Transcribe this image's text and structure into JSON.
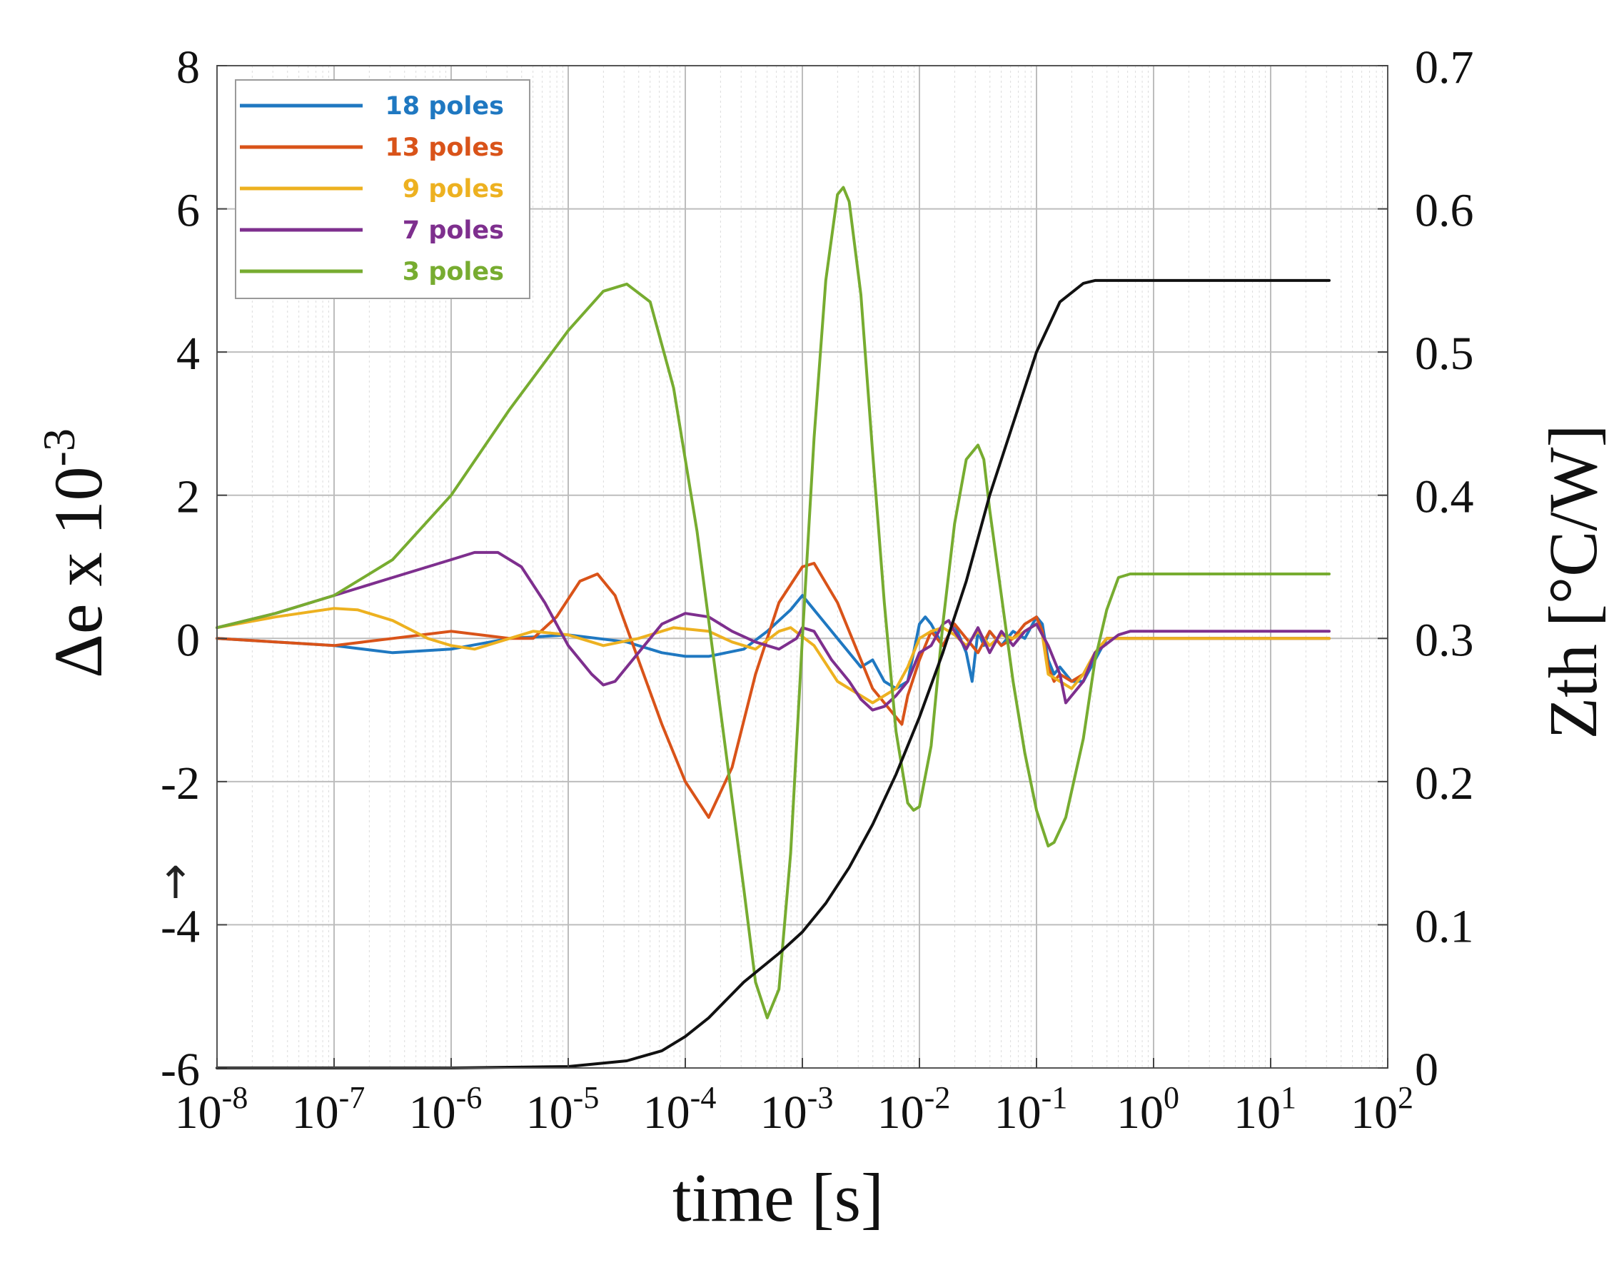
{
  "chart_data": {
    "type": "line",
    "title": "",
    "xlabel": "time [s]",
    "ylabel_left": "Δe x 10",
    "ylabel_left_exponent": "-3",
    "ylabel_right": "Zth [°C/W]",
    "x_scale": "log",
    "xlim": [
      1e-08,
      100
    ],
    "ylim_left": [
      -6,
      8
    ],
    "ylim_right": [
      0,
      0.7
    ],
    "grid": true,
    "legend_position": "top-left",
    "left_arrow_glyph": "↑",
    "x_ticks": [
      {
        "value": 1e-08,
        "base": "10",
        "exp": "-8"
      },
      {
        "value": 1e-07,
        "base": "10",
        "exp": "-7"
      },
      {
        "value": 1e-06,
        "base": "10",
        "exp": "-6"
      },
      {
        "value": 1e-05,
        "base": "10",
        "exp": "-5"
      },
      {
        "value": 0.0001,
        "base": "10",
        "exp": "-4"
      },
      {
        "value": 0.001,
        "base": "10",
        "exp": "-3"
      },
      {
        "value": 0.01,
        "base": "10",
        "exp": "-2"
      },
      {
        "value": 0.1,
        "base": "10",
        "exp": "-1"
      },
      {
        "value": 1,
        "base": "10",
        "exp": "0"
      },
      {
        "value": 10,
        "base": "10",
        "exp": "1"
      },
      {
        "value": 100,
        "base": "10",
        "exp": "2"
      }
    ],
    "y_left_ticks": [
      {
        "value": 8,
        "label": "8"
      },
      {
        "value": 6,
        "label": "6"
      },
      {
        "value": 4,
        "label": "4"
      },
      {
        "value": 2,
        "label": "2"
      },
      {
        "value": 0,
        "label": "0"
      },
      {
        "value": -2,
        "label": "-2"
      },
      {
        "value": -4,
        "label": "-4"
      },
      {
        "value": -6,
        "label": "-6"
      }
    ],
    "y_right_ticks": [
      {
        "value": 0.7,
        "label": "0.7"
      },
      {
        "value": 0.6,
        "label": "0.6"
      },
      {
        "value": 0.5,
        "label": "0.5"
      },
      {
        "value": 0.4,
        "label": "0.4"
      },
      {
        "value": 0.3,
        "label": "0.3"
      },
      {
        "value": 0.2,
        "label": "0.2"
      },
      {
        "value": 0.1,
        "label": "0.1"
      },
      {
        "value": 0,
        "label": "0"
      }
    ],
    "series": [
      {
        "name": "18 poles",
        "label": "18 poles",
        "color": "#1f78c1",
        "axis": "left",
        "points": [
          [
            -8,
            0
          ],
          [
            -7.5,
            -0.05
          ],
          [
            -7,
            -0.1
          ],
          [
            -6.5,
            -0.2
          ],
          [
            -6,
            -0.15
          ],
          [
            -5.5,
            0
          ],
          [
            -5,
            0.05
          ],
          [
            -4.5,
            -0.05
          ],
          [
            -4.2,
            -0.2
          ],
          [
            -4,
            -0.25
          ],
          [
            -3.8,
            -0.25
          ],
          [
            -3.5,
            -0.15
          ],
          [
            -3.3,
            0.1
          ],
          [
            -3.1,
            0.4
          ],
          [
            -3,
            0.6
          ],
          [
            -2.9,
            0.4
          ],
          [
            -2.7,
            0
          ],
          [
            -2.5,
            -0.4
          ],
          [
            -2.4,
            -0.3
          ],
          [
            -2.3,
            -0.6
          ],
          [
            -2.2,
            -0.7
          ],
          [
            -2.1,
            -0.6
          ],
          [
            -2,
            0.2
          ],
          [
            -1.95,
            0.3
          ],
          [
            -1.9,
            0.2
          ],
          [
            -1.8,
            -0.1
          ],
          [
            -1.7,
            0.2
          ],
          [
            -1.6,
            -0.2
          ],
          [
            -1.55,
            -0.6
          ],
          [
            -1.5,
            0.1
          ],
          [
            -1.45,
            -0.1
          ],
          [
            -1.4,
            0.1
          ],
          [
            -1.3,
            -0.1
          ],
          [
            -1.2,
            0.1
          ],
          [
            -1.1,
            0
          ],
          [
            -1,
            0.3
          ],
          [
            -0.95,
            0.2
          ],
          [
            -0.9,
            -0.3
          ],
          [
            -0.85,
            -0.5
          ],
          [
            -0.8,
            -0.4
          ],
          [
            -0.7,
            -0.6
          ],
          [
            -0.6,
            -0.6
          ],
          [
            -0.5,
            -0.3
          ],
          [
            -0.4,
            0
          ],
          [
            1.5,
            0
          ]
        ]
      },
      {
        "name": "13 poles",
        "label": "13 poles",
        "color": "#d95319",
        "axis": "left",
        "points": [
          [
            -8,
            0
          ],
          [
            -7.5,
            -0.05
          ],
          [
            -7,
            -0.1
          ],
          [
            -6.5,
            0
          ],
          [
            -6,
            0.1
          ],
          [
            -5.5,
            0
          ],
          [
            -5.3,
            0
          ],
          [
            -5.1,
            0.3
          ],
          [
            -4.9,
            0.8
          ],
          [
            -4.75,
            0.9
          ],
          [
            -4.6,
            0.6
          ],
          [
            -4.4,
            -0.3
          ],
          [
            -4.2,
            -1.2
          ],
          [
            -4,
            -2
          ],
          [
            -3.8,
            -2.5
          ],
          [
            -3.6,
            -1.8
          ],
          [
            -3.4,
            -0.5
          ],
          [
            -3.2,
            0.5
          ],
          [
            -3,
            1
          ],
          [
            -2.9,
            1.05
          ],
          [
            -2.7,
            0.5
          ],
          [
            -2.5,
            -0.3
          ],
          [
            -2.4,
            -0.7
          ],
          [
            -2.3,
            -0.9
          ],
          [
            -2.2,
            -1.1
          ],
          [
            -2.15,
            -1.2
          ],
          [
            -2.1,
            -0.8
          ],
          [
            -2,
            -0.3
          ],
          [
            -1.9,
            0.1
          ],
          [
            -1.8,
            -0.1
          ],
          [
            -1.7,
            0.2
          ],
          [
            -1.6,
            0
          ],
          [
            -1.5,
            -0.2
          ],
          [
            -1.4,
            0.1
          ],
          [
            -1.3,
            -0.1
          ],
          [
            -1.2,
            0
          ],
          [
            -1.1,
            0.2
          ],
          [
            -1,
            0.3
          ],
          [
            -0.95,
            0.1
          ],
          [
            -0.9,
            -0.4
          ],
          [
            -0.85,
            -0.6
          ],
          [
            -0.8,
            -0.5
          ],
          [
            -0.7,
            -0.6
          ],
          [
            -0.6,
            -0.5
          ],
          [
            -0.5,
            -0.2
          ],
          [
            -0.4,
            0
          ],
          [
            1.5,
            0
          ]
        ]
      },
      {
        "name": "9 poles",
        "label": "9 poles",
        "color": "#edb120",
        "axis": "left",
        "points": [
          [
            -8,
            0.15
          ],
          [
            -7.5,
            0.3
          ],
          [
            -7,
            0.42
          ],
          [
            -6.8,
            0.4
          ],
          [
            -6.5,
            0.25
          ],
          [
            -6.2,
            0
          ],
          [
            -6,
            -0.1
          ],
          [
            -5.8,
            -0.15
          ],
          [
            -5.6,
            -0.05
          ],
          [
            -5.3,
            0.1
          ],
          [
            -5,
            0.05
          ],
          [
            -4.7,
            -0.1
          ],
          [
            -4.4,
            0
          ],
          [
            -4.1,
            0.15
          ],
          [
            -3.8,
            0.1
          ],
          [
            -3.6,
            -0.05
          ],
          [
            -3.4,
            -0.15
          ],
          [
            -3.2,
            0.1
          ],
          [
            -3.1,
            0.15
          ],
          [
            -2.9,
            -0.1
          ],
          [
            -2.7,
            -0.6
          ],
          [
            -2.5,
            -0.8
          ],
          [
            -2.4,
            -0.9
          ],
          [
            -2.3,
            -0.8
          ],
          [
            -2.2,
            -0.7
          ],
          [
            -2.1,
            -0.4
          ],
          [
            -2,
            0
          ],
          [
            -1.9,
            0.1
          ],
          [
            -1.8,
            0.15
          ],
          [
            -1.7,
            0.05
          ],
          [
            -1.6,
            -0.1
          ],
          [
            -1.5,
            0.1
          ],
          [
            -1.4,
            -0.1
          ],
          [
            -1.3,
            0.05
          ],
          [
            -1.2,
            0
          ],
          [
            -1.1,
            0.1
          ],
          [
            -1,
            0.2
          ],
          [
            -0.95,
            0.05
          ],
          [
            -0.9,
            -0.5
          ],
          [
            -0.8,
            -0.6
          ],
          [
            -0.7,
            -0.7
          ],
          [
            -0.6,
            -0.5
          ],
          [
            -0.5,
            -0.2
          ],
          [
            -0.4,
            0
          ],
          [
            1.5,
            0
          ]
        ]
      },
      {
        "name": "7 poles",
        "label": "7 poles",
        "color": "#7e2f8e",
        "axis": "left",
        "points": [
          [
            -8,
            0.15
          ],
          [
            -7.5,
            0.35
          ],
          [
            -7,
            0.6
          ],
          [
            -6.5,
            0.85
          ],
          [
            -6,
            1.1
          ],
          [
            -5.8,
            1.2
          ],
          [
            -5.6,
            1.2
          ],
          [
            -5.4,
            1
          ],
          [
            -5.2,
            0.5
          ],
          [
            -5,
            -0.1
          ],
          [
            -4.8,
            -0.5
          ],
          [
            -4.7,
            -0.65
          ],
          [
            -4.6,
            -0.6
          ],
          [
            -4.4,
            -0.2
          ],
          [
            -4.2,
            0.2
          ],
          [
            -4,
            0.35
          ],
          [
            -3.8,
            0.3
          ],
          [
            -3.6,
            0.1
          ],
          [
            -3.4,
            -0.05
          ],
          [
            -3.2,
            -0.15
          ],
          [
            -3.05,
            0
          ],
          [
            -3,
            0.15
          ],
          [
            -2.9,
            0.1
          ],
          [
            -2.75,
            -0.3
          ],
          [
            -2.6,
            -0.6
          ],
          [
            -2.5,
            -0.85
          ],
          [
            -2.4,
            -1
          ],
          [
            -2.3,
            -0.95
          ],
          [
            -2.2,
            -0.8
          ],
          [
            -2.1,
            -0.6
          ],
          [
            -2,
            -0.2
          ],
          [
            -1.9,
            -0.1
          ],
          [
            -1.8,
            0.2
          ],
          [
            -1.75,
            0.25
          ],
          [
            -1.7,
            0.1
          ],
          [
            -1.6,
            -0.15
          ],
          [
            -1.5,
            0.15
          ],
          [
            -1.4,
            -0.2
          ],
          [
            -1.3,
            0.1
          ],
          [
            -1.2,
            -0.1
          ],
          [
            -1.1,
            0.1
          ],
          [
            -1,
            0.2
          ],
          [
            -0.9,
            -0.1
          ],
          [
            -0.8,
            -0.5
          ],
          [
            -0.75,
            -0.9
          ],
          [
            -0.7,
            -0.8
          ],
          [
            -0.6,
            -0.6
          ],
          [
            -0.5,
            -0.2
          ],
          [
            -0.3,
            0.05
          ],
          [
            -0.2,
            0.1
          ],
          [
            1.5,
            0.1
          ]
        ]
      },
      {
        "name": "3 poles",
        "label": "3 poles",
        "color": "#77ac30",
        "axis": "left",
        "points": [
          [
            -8,
            0.15
          ],
          [
            -7.5,
            0.35
          ],
          [
            -7,
            0.6
          ],
          [
            -6.5,
            1.1
          ],
          [
            -6,
            2
          ],
          [
            -5.5,
            3.2
          ],
          [
            -5,
            4.3
          ],
          [
            -4.7,
            4.85
          ],
          [
            -4.5,
            4.95
          ],
          [
            -4.3,
            4.7
          ],
          [
            -4.1,
            3.5
          ],
          [
            -3.9,
            1.5
          ],
          [
            -3.7,
            -1
          ],
          [
            -3.5,
            -3.5
          ],
          [
            -3.4,
            -4.8
          ],
          [
            -3.3,
            -5.3
          ],
          [
            -3.2,
            -4.9
          ],
          [
            -3.1,
            -3
          ],
          [
            -3,
            0
          ],
          [
            -2.9,
            2.8
          ],
          [
            -2.8,
            5
          ],
          [
            -2.7,
            6.2
          ],
          [
            -2.65,
            6.3
          ],
          [
            -2.6,
            6.1
          ],
          [
            -2.5,
            4.8
          ],
          [
            -2.4,
            2.6
          ],
          [
            -2.3,
            0.5
          ],
          [
            -2.2,
            -1.3
          ],
          [
            -2.1,
            -2.3
          ],
          [
            -2.05,
            -2.4
          ],
          [
            -2,
            -2.35
          ],
          [
            -1.9,
            -1.5
          ],
          [
            -1.8,
            0.2
          ],
          [
            -1.7,
            1.6
          ],
          [
            -1.6,
            2.5
          ],
          [
            -1.5,
            2.7
          ],
          [
            -1.45,
            2.5
          ],
          [
            -1.4,
            1.8
          ],
          [
            -1.3,
            0.6
          ],
          [
            -1.2,
            -0.6
          ],
          [
            -1.1,
            -1.6
          ],
          [
            -1,
            -2.4
          ],
          [
            -0.9,
            -2.9
          ],
          [
            -0.85,
            -2.85
          ],
          [
            -0.75,
            -2.5
          ],
          [
            -0.6,
            -1.4
          ],
          [
            -0.5,
            -0.3
          ],
          [
            -0.4,
            0.4
          ],
          [
            -0.3,
            0.85
          ],
          [
            -0.2,
            0.9
          ],
          [
            1.5,
            0.9
          ]
        ]
      },
      {
        "name": "Zth",
        "label": "",
        "color": "#111111",
        "axis": "right",
        "points": [
          [
            -8,
            0
          ],
          [
            -6,
            0
          ],
          [
            -5,
            0.001
          ],
          [
            -4.5,
            0.005
          ],
          [
            -4.2,
            0.012
          ],
          [
            -4,
            0.022
          ],
          [
            -3.8,
            0.035
          ],
          [
            -3.5,
            0.06
          ],
          [
            -3.2,
            0.08
          ],
          [
            -3,
            0.095
          ],
          [
            -2.8,
            0.115
          ],
          [
            -2.6,
            0.14
          ],
          [
            -2.4,
            0.17
          ],
          [
            -2.2,
            0.205
          ],
          [
            -2,
            0.245
          ],
          [
            -1.8,
            0.29
          ],
          [
            -1.6,
            0.34
          ],
          [
            -1.4,
            0.4
          ],
          [
            -1.2,
            0.45
          ],
          [
            -1,
            0.5
          ],
          [
            -0.8,
            0.535
          ],
          [
            -0.6,
            0.548
          ],
          [
            -0.5,
            0.55
          ],
          [
            1.5,
            0.55
          ]
        ]
      }
    ],
    "legend": [
      "18 poles",
      "13 poles",
      "9 poles",
      "7 poles",
      "3 poles"
    ]
  }
}
